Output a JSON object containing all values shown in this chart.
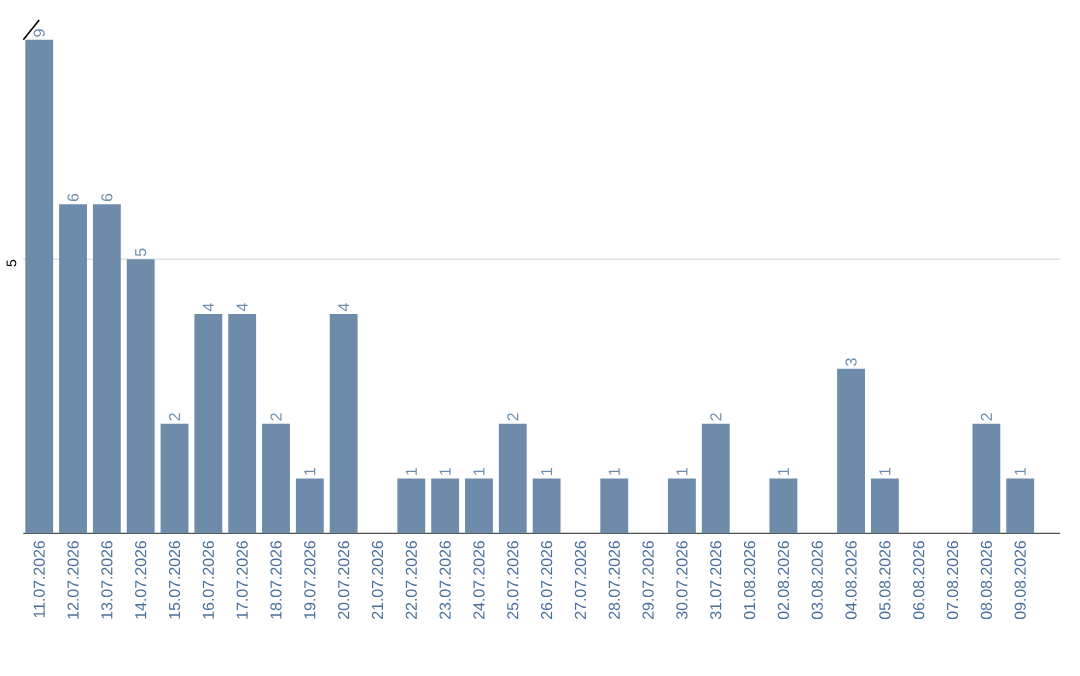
{
  "chart_data": {
    "type": "bar",
    "categories": [
      "11.07.2026",
      "12.07.2026",
      "13.07.2026",
      "14.07.2026",
      "15.07.2026",
      "16.07.2026",
      "17.07.2026",
      "18.07.2026",
      "19.07.2026",
      "20.07.2026",
      "21.07.2026",
      "22.07.2026",
      "23.07.2026",
      "24.07.2026",
      "25.07.2026",
      "26.07.2026",
      "27.07.2026",
      "28.07.2026",
      "29.07.2026",
      "30.07.2026",
      "31.07.2026",
      "01.08.2026",
      "02.08.2026",
      "03.08.2026",
      "04.08.2026",
      "05.08.2026",
      "06.08.2026",
      "07.08.2026",
      "08.08.2026",
      "09.08.2026"
    ],
    "values": [
      9,
      6,
      6,
      5,
      2,
      4,
      4,
      2,
      1,
      4,
      0,
      1,
      1,
      1,
      2,
      1,
      0,
      1,
      0,
      1,
      2,
      0,
      1,
      0,
      3,
      1,
      0,
      0,
      2,
      1
    ],
    "value_labels": [
      "9",
      "6",
      "6",
      "5",
      "2",
      "4",
      "4",
      "2",
      "1",
      "4",
      null,
      "1",
      "1",
      "1",
      "2",
      "1",
      null,
      "1",
      null,
      "1",
      "2",
      null,
      "1",
      null,
      "3",
      "1",
      null,
      null,
      "2",
      "1"
    ],
    "color": "#6e8caa",
    "ylim": [
      0,
      9
    ],
    "yticks": [
      {
        "value": 0,
        "label": null
      },
      5
    ],
    "grid": "y"
  }
}
